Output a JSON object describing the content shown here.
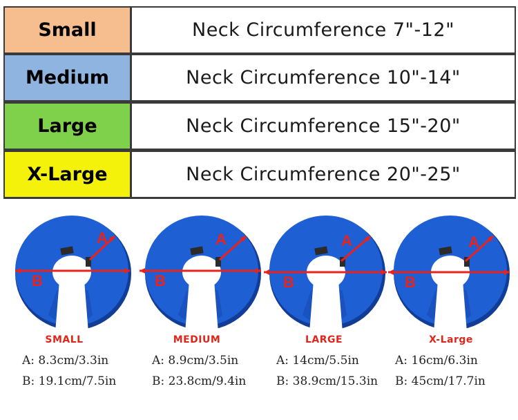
{
  "size_table": [
    {
      "size": "Small",
      "neck": "Neck Circumference 7\"-12\"",
      "color": "#f6bd8f"
    },
    {
      "size": "Medium",
      "neck": "Neck Circumference 10\"-14\"",
      "color": "#8fb4e0"
    },
    {
      "size": "Large",
      "neck": "Neck Circumference 15\"-20\"",
      "color": "#7fd04a"
    },
    {
      "size": "X-Large",
      "neck": "Neck Circumference 20\"-25\"",
      "color": "#f4f10a"
    }
  ],
  "collars": [
    {
      "title": "SMALL",
      "a": "A: 8.3cm/3.3in",
      "b": "B: 19.1cm/7.5in",
      "marker_a": "A",
      "marker_b": "B"
    },
    {
      "title": "MEDIUM",
      "a": "A: 8.9cm/3.5in",
      "b": "B: 23.8cm/9.4in",
      "marker_a": "A",
      "marker_b": "B"
    },
    {
      "title": "LARGE",
      "a": "A: 14cm/5.5in",
      "b": "B: 38.9cm/15.3in",
      "marker_a": "A",
      "marker_b": "B"
    },
    {
      "title": "X-Large",
      "a": "A: 16cm/6.3in",
      "b": "B: 45cm/17.7in",
      "marker_a": "A",
      "marker_b": "B"
    }
  ],
  "colors": {
    "collar_blue": "#1f5fd4",
    "collar_dark": "#113d96",
    "measure_red": "#e8231d",
    "border": "#3a3a3a"
  },
  "icons": [
    "inflatable-collar-icon"
  ]
}
